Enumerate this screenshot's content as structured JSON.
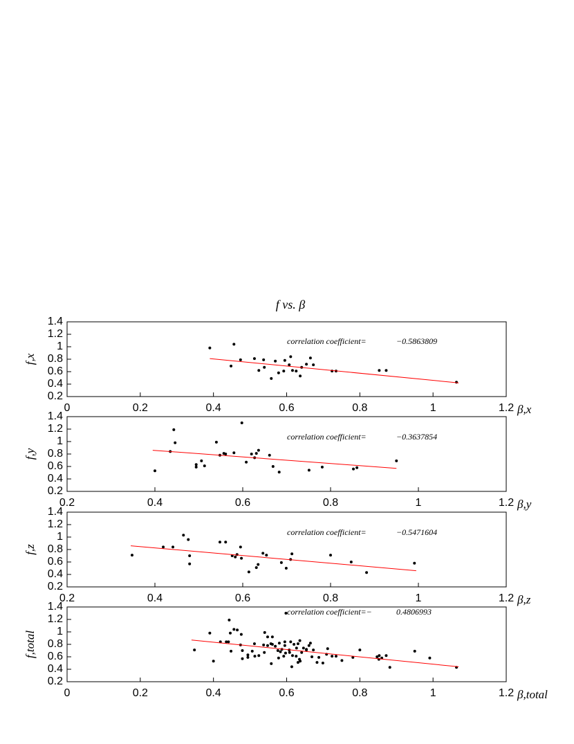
{
  "title": "f vs. β",
  "chart_data": [
    {
      "type": "scatter",
      "xlabel": "β,x",
      "ylabel": "f,x",
      "annotation": "correlation coefficient=",
      "annotation_value": "−0.5863809",
      "xlim": [
        0,
        1.2
      ],
      "ylim": [
        0.2,
        1.4
      ],
      "xticks": [
        0,
        0.2,
        0.4,
        0.6,
        0.8,
        1,
        1.2
      ],
      "yticks": [
        0.2,
        0.4,
        0.6,
        0.8,
        1,
        1.2,
        1.4
      ],
      "series": [
        {
          "color": "#000000",
          "x": [
            0.39,
            0.456,
            0.448,
            0.474,
            0.512,
            0.524,
            0.537,
            0.539,
            0.558,
            0.569,
            0.578,
            0.592,
            0.595,
            0.607,
            0.611,
            0.616,
            0.626,
            0.637,
            0.641,
            0.654,
            0.665,
            0.673,
            0.724,
            0.735,
            0.853,
            0.872,
            1.064
          ],
          "values": [
            0.98,
            1.04,
            0.69,
            0.79,
            0.81,
            0.62,
            0.79,
            0.67,
            0.49,
            0.77,
            0.58,
            0.61,
            0.78,
            0.71,
            0.84,
            0.62,
            0.61,
            0.53,
            0.67,
            0.72,
            0.82,
            0.71,
            0.61,
            0.61,
            0.62,
            0.62,
            0.43
          ]
        }
      ],
      "fit": {
        "color": "#ff0000",
        "x": [
          0.39,
          1.07
        ],
        "values": [
          0.81,
          0.42
        ]
      }
    },
    {
      "type": "scatter",
      "xlabel": "β,y",
      "ylabel": "f,y",
      "annotation": "correlation coefficient=",
      "annotation_value": "−0.3637854",
      "xlim": [
        0.2,
        1.2
      ],
      "ylim": [
        0.2,
        1.4
      ],
      "xticks": [
        0.2,
        0.4,
        0.6,
        0.8,
        1,
        1.2
      ],
      "yticks": [
        0.2,
        0.4,
        0.6,
        0.8,
        1,
        1.2,
        1.4
      ],
      "series": [
        {
          "color": "#000000",
          "x": [
            0.4,
            0.435,
            0.443,
            0.446,
            0.494,
            0.494,
            0.506,
            0.513,
            0.54,
            0.548,
            0.557,
            0.561,
            0.58,
            0.598,
            0.608,
            0.62,
            0.627,
            0.631,
            0.636,
            0.661,
            0.669,
            0.683,
            0.751,
            0.781,
            0.852,
            0.86,
            0.95
          ],
          "values": [
            0.53,
            0.84,
            1.19,
            0.98,
            0.63,
            0.59,
            0.69,
            0.61,
            0.99,
            0.78,
            0.81,
            0.8,
            0.82,
            1.3,
            0.67,
            0.8,
            0.74,
            0.81,
            0.86,
            0.78,
            0.6,
            0.51,
            0.54,
            0.59,
            0.56,
            0.58,
            0.69
          ]
        }
      ],
      "fit": {
        "color": "#ff0000",
        "x": [
          0.395,
          0.95
        ],
        "values": [
          0.86,
          0.57
        ]
      }
    },
    {
      "type": "scatter",
      "xlabel": "β,z",
      "ylabel": "f,z",
      "annotation": "correlation coefficient=",
      "annotation_value": "−0.5471604",
      "xlim": [
        0.2,
        1.2
      ],
      "ylim": [
        0.2,
        1.4
      ],
      "xticks": [
        0.2,
        0.4,
        0.6,
        0.8,
        1,
        1.2
      ],
      "yticks": [
        0.2,
        0.4,
        0.6,
        0.8,
        1,
        1.2,
        1.4
      ],
      "series": [
        {
          "color": "#000000",
          "x": [
            0.348,
            0.419,
            0.441,
            0.465,
            0.476,
            0.479,
            0.479,
            0.548,
            0.561,
            0.576,
            0.583,
            0.587,
            0.595,
            0.597,
            0.614,
            0.631,
            0.635,
            0.646,
            0.654,
            0.688,
            0.699,
            0.709,
            0.712,
            0.8,
            0.847,
            0.882,
            0.991
          ],
          "values": [
            0.71,
            0.84,
            0.84,
            1.03,
            0.96,
            0.7,
            0.57,
            0.92,
            0.92,
            0.7,
            0.68,
            0.72,
            0.84,
            0.66,
            0.44,
            0.51,
            0.56,
            0.74,
            0.71,
            0.59,
            0.5,
            0.64,
            0.73,
            0.71,
            0.6,
            0.43,
            0.58
          ]
        }
      ],
      "fit": {
        "color": "#ff0000",
        "x": [
          0.345,
          0.995
        ],
        "values": [
          0.86,
          0.46
        ]
      }
    },
    {
      "type": "scatter",
      "xlabel": "β,total",
      "ylabel": "f,total",
      "annotation": "correlation coefficient=−",
      "annotation_value": "0.4806993",
      "xlim": [
        0,
        1.2
      ],
      "ylim": [
        0.2,
        1.4
      ],
      "xticks": [
        0,
        0.2,
        0.4,
        0.6,
        0.8,
        1,
        1.2
      ],
      "yticks": [
        0.2,
        0.4,
        0.6,
        0.8,
        1,
        1.2,
        1.4
      ],
      "series": [
        {
          "color": "#000000",
          "x": [
            0.39,
            0.456,
            0.448,
            0.474,
            0.512,
            0.524,
            0.537,
            0.539,
            0.558,
            0.569,
            0.578,
            0.592,
            0.595,
            0.607,
            0.611,
            0.616,
            0.626,
            0.637,
            0.641,
            0.654,
            0.665,
            0.673,
            0.724,
            0.735,
            0.853,
            0.872,
            1.064,
            0.4,
            0.435,
            0.443,
            0.446,
            0.494,
            0.494,
            0.506,
            0.513,
            0.54,
            0.548,
            0.557,
            0.561,
            0.58,
            0.598,
            0.608,
            0.62,
            0.627,
            0.631,
            0.636,
            0.661,
            0.669,
            0.683,
            0.751,
            0.781,
            0.852,
            0.86,
            0.95,
            0.348,
            0.419,
            0.441,
            0.465,
            0.476,
            0.479,
            0.479,
            0.548,
            0.561,
            0.576,
            0.583,
            0.587,
            0.595,
            0.597,
            0.614,
            0.631,
            0.635,
            0.646,
            0.654,
            0.688,
            0.699,
            0.709,
            0.712,
            0.8,
            0.847,
            0.882,
            0.991
          ],
          "values": [
            0.98,
            1.04,
            0.69,
            0.79,
            0.81,
            0.62,
            0.79,
            0.67,
            0.49,
            0.77,
            0.58,
            0.61,
            0.78,
            0.71,
            0.84,
            0.62,
            0.61,
            0.53,
            0.67,
            0.72,
            0.82,
            0.71,
            0.61,
            0.61,
            0.62,
            0.62,
            0.43,
            0.53,
            0.84,
            1.19,
            0.98,
            0.63,
            0.59,
            0.69,
            0.61,
            0.99,
            0.78,
            0.81,
            0.8,
            0.82,
            1.3,
            0.67,
            0.8,
            0.74,
            0.81,
            0.86,
            0.78,
            0.6,
            0.51,
            0.54,
            0.59,
            0.56,
            0.58,
            0.69,
            0.71,
            0.84,
            0.84,
            1.03,
            0.96,
            0.7,
            0.57,
            0.92,
            0.92,
            0.7,
            0.68,
            0.72,
            0.84,
            0.66,
            0.44,
            0.51,
            0.56,
            0.74,
            0.71,
            0.59,
            0.5,
            0.64,
            0.73,
            0.71,
            0.6,
            0.43,
            0.58
          ]
        }
      ],
      "fit": {
        "color": "#ff0000",
        "x": [
          0.34,
          1.07
        ],
        "values": [
          0.87,
          0.44
        ]
      }
    }
  ]
}
